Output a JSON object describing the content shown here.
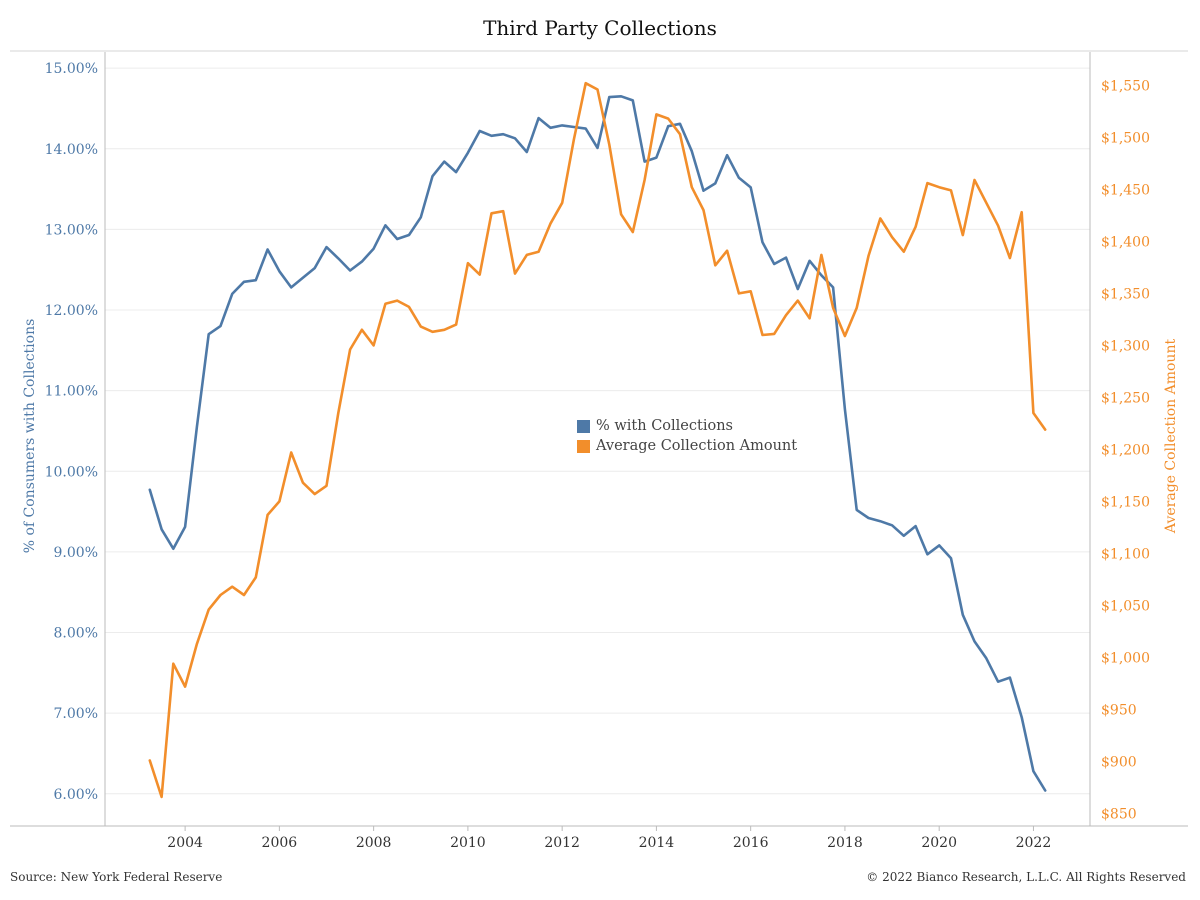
{
  "title": "Third Party Collections",
  "footer": {
    "source": "Source: New York Federal Reserve",
    "copyright": "© 2022 Bianco Research, L.L.C. All Rights Reserved"
  },
  "colors": {
    "left_series": "#4e79a7",
    "right_series": "#f28e2b",
    "grid": "#ececec",
    "axis": "#bbbbbb"
  },
  "chart_data": {
    "type": "line",
    "title": "Third Party Collections",
    "grid": true,
    "legend_position": "center",
    "x_axis": {
      "label": "",
      "ticks": [
        2004,
        2006,
        2008,
        2010,
        2012,
        2014,
        2016,
        2018,
        2020,
        2022
      ],
      "range": [
        2002.3,
        2023.2
      ]
    },
    "y_left": {
      "label": "% of Consumers with Collections",
      "range": [
        5.6,
        15.2
      ],
      "ticks": [
        "6.00%",
        "7.00%",
        "8.00%",
        "9.00%",
        "10.00%",
        "11.00%",
        "12.00%",
        "13.00%",
        "14.00%",
        "15.00%"
      ],
      "tick_values": [
        6,
        7,
        8,
        9,
        10,
        11,
        12,
        13,
        14,
        15
      ]
    },
    "y_right": {
      "label": "Average Collection Amount",
      "range": [
        838,
        1582
      ],
      "ticks": [
        "$850",
        "$900",
        "$950",
        "$1,000",
        "$1,050",
        "$1,100",
        "$1,150",
        "$1,200",
        "$1,250",
        "$1,300",
        "$1,350",
        "$1,400",
        "$1,450",
        "$1,500",
        "$1,550"
      ],
      "tick_values": [
        850,
        900,
        950,
        1000,
        1050,
        1100,
        1150,
        1200,
        1250,
        1300,
        1350,
        1400,
        1450,
        1500,
        1550
      ]
    },
    "series": [
      {
        "name": "% with Collections",
        "axis": "left",
        "color": "#4e79a7",
        "x": [
          2003.25,
          2003.5,
          2003.75,
          2004.0,
          2004.25,
          2004.5,
          2004.75,
          2005.0,
          2005.25,
          2005.5,
          2005.75,
          2006.0,
          2006.25,
          2006.5,
          2006.75,
          2007.0,
          2007.25,
          2007.5,
          2007.75,
          2008.0,
          2008.25,
          2008.5,
          2008.75,
          2009.0,
          2009.25,
          2009.5,
          2009.75,
          2010.0,
          2010.25,
          2010.5,
          2010.75,
          2011.0,
          2011.25,
          2011.5,
          2011.75,
          2012.0,
          2012.25,
          2012.5,
          2012.75,
          2013.0,
          2013.25,
          2013.5,
          2013.75,
          2014.0,
          2014.25,
          2014.5,
          2014.75,
          2015.0,
          2015.25,
          2015.5,
          2015.75,
          2016.0,
          2016.25,
          2016.5,
          2016.75,
          2017.0,
          2017.25,
          2017.5,
          2017.75,
          2018.0,
          2018.25,
          2018.5,
          2018.75,
          2019.0,
          2019.25,
          2019.5,
          2019.75,
          2020.0,
          2020.25,
          2020.5,
          2020.75,
          2021.0,
          2021.25,
          2021.5,
          2021.75,
          2022.0,
          2022.25
        ],
        "values": [
          9.77,
          9.28,
          9.04,
          9.31,
          10.55,
          11.7,
          11.8,
          12.2,
          12.35,
          12.37,
          12.75,
          12.48,
          12.28,
          12.4,
          12.52,
          12.78,
          12.64,
          12.49,
          12.6,
          12.76,
          13.05,
          12.88,
          12.93,
          13.15,
          13.66,
          13.84,
          13.71,
          13.95,
          14.22,
          14.16,
          14.18,
          14.13,
          13.96,
          14.38,
          14.26,
          14.29,
          14.27,
          14.25,
          14.01,
          14.64,
          14.65,
          14.6,
          13.84,
          13.89,
          14.28,
          14.31,
          13.97,
          13.48,
          13.57,
          13.92,
          13.64,
          13.52,
          12.84,
          12.57,
          12.65,
          12.26,
          12.61,
          12.43,
          12.28,
          10.77,
          9.52,
          9.42,
          9.38,
          9.33,
          9.2,
          9.32,
          8.97,
          9.08,
          8.92,
          8.22,
          7.89,
          7.68,
          7.39,
          7.44,
          6.95,
          6.28,
          6.04
        ]
      },
      {
        "name": "Average Collection Amount",
        "axis": "right",
        "color": "#f28e2b",
        "x": [
          2003.25,
          2003.5,
          2003.75,
          2004.0,
          2004.25,
          2004.5,
          2004.75,
          2005.0,
          2005.25,
          2005.5,
          2005.75,
          2006.0,
          2006.25,
          2006.5,
          2006.75,
          2007.0,
          2007.25,
          2007.5,
          2007.75,
          2008.0,
          2008.25,
          2008.5,
          2008.75,
          2009.0,
          2009.25,
          2009.5,
          2009.75,
          2010.0,
          2010.25,
          2010.5,
          2010.75,
          2011.0,
          2011.25,
          2011.5,
          2011.75,
          2012.0,
          2012.25,
          2012.5,
          2012.75,
          2013.0,
          2013.25,
          2013.5,
          2013.75,
          2014.0,
          2014.25,
          2014.5,
          2014.75,
          2015.0,
          2015.25,
          2015.5,
          2015.75,
          2016.0,
          2016.25,
          2016.5,
          2016.75,
          2017.0,
          2017.25,
          2017.5,
          2017.75,
          2018.0,
          2018.25,
          2018.5,
          2018.75,
          2019.0,
          2019.25,
          2019.5,
          2019.75,
          2020.0,
          2020.25,
          2020.5,
          2020.75,
          2021.0,
          2021.25,
          2021.5,
          2021.75,
          2022.0,
          2022.25
        ],
        "values": [
          901,
          866,
          994,
          972,
          1013,
          1046,
          1060,
          1068,
          1060,
          1077,
          1137,
          1150,
          1197,
          1168,
          1157,
          1165,
          1235,
          1296,
          1315,
          1300,
          1340,
          1343,
          1337,
          1318,
          1313,
          1315,
          1320,
          1379,
          1368,
          1427,
          1429,
          1369,
          1387,
          1390,
          1417,
          1437,
          1498,
          1552,
          1546,
          1493,
          1426,
          1409,
          1459,
          1522,
          1518,
          1503,
          1452,
          1430,
          1377,
          1391,
          1350,
          1352,
          1310,
          1311,
          1329,
          1343,
          1326,
          1387,
          1336,
          1309,
          1336,
          1386,
          1422,
          1404,
          1390,
          1414,
          1456,
          1452,
          1449,
          1406,
          1459,
          1437,
          1415,
          1384,
          1428,
          1235,
          1219
        ]
      }
    ]
  }
}
